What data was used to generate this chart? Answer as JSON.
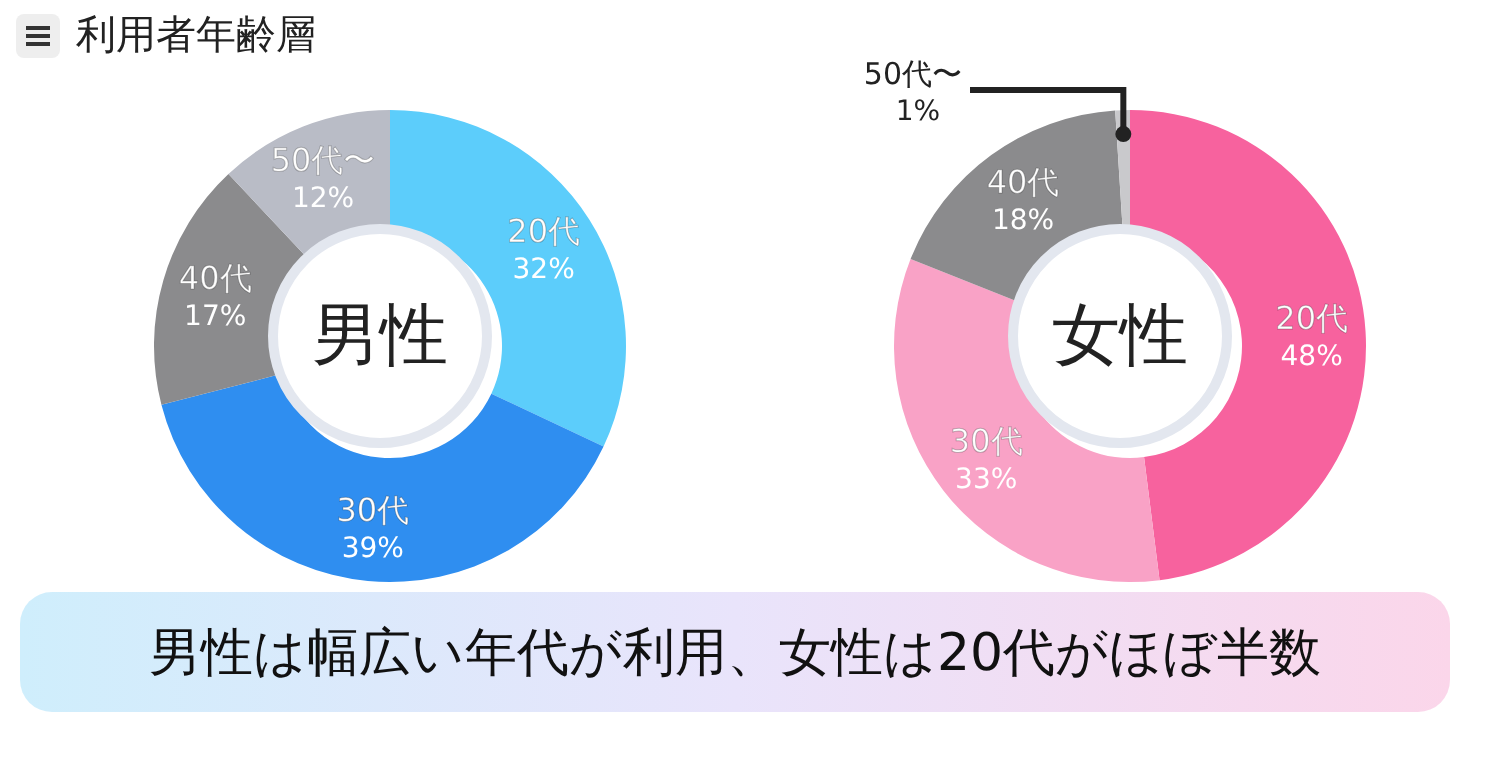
{
  "chart_data": [
    {
      "type": "other",
      "title": "利用者年齢層"
    },
    {
      "type": "donut",
      "title": "男性",
      "categories": [
        "20代",
        "30代",
        "40代",
        "50代〜"
      ],
      "values": [
        32,
        39,
        17,
        12
      ],
      "value_labels": [
        "32%",
        "39%",
        "17%",
        "12%"
      ],
      "colors": [
        "#5ccdfb",
        "#2f8ef0",
        "#8b8b8d",
        "#b9bcc6"
      ],
      "legend": false
    },
    {
      "type": "donut",
      "title": "女性",
      "categories": [
        "20代",
        "30代",
        "40代",
        "50代〜"
      ],
      "values": [
        48,
        33,
        18,
        1
      ],
      "value_labels": [
        "48%",
        "33%",
        "18%",
        "1%"
      ],
      "colors": [
        "#f7629e",
        "#f9a2c6",
        "#8b8b8d",
        "#c9c9cc"
      ],
      "legend": false
    },
    {
      "type": "other",
      "annotations": [
        "男性は幅広い年代が利用、女性は20代がほぼ半数"
      ]
    }
  ]
}
